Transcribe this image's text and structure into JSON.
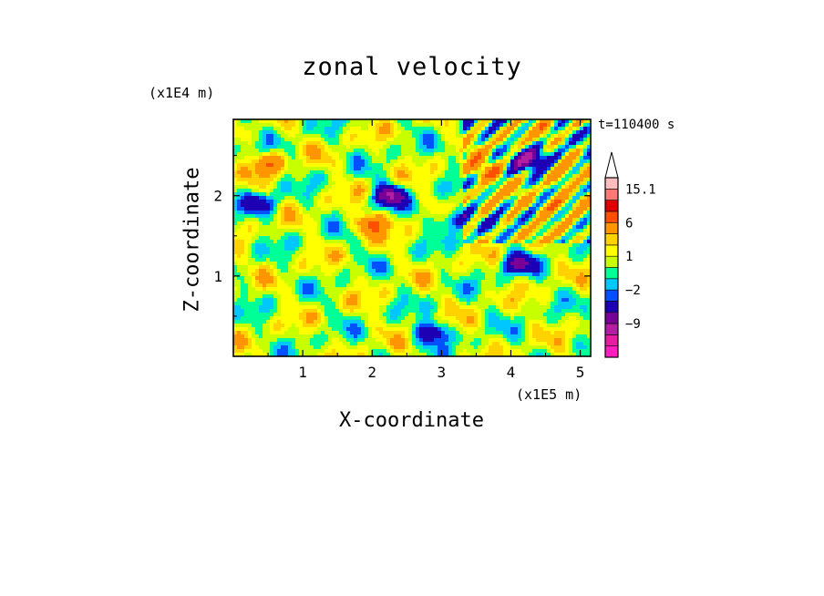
{
  "chart_data": {
    "type": "heatmap",
    "title": "zonal velocity",
    "xlabel": "X-coordinate",
    "ylabel": "Z-coordinate",
    "x_scale_label": "(x1E5 m)",
    "y_scale_label": "(x1E4 m)",
    "time_label": "t=110400 s",
    "xlim": [
      0,
      5.15
    ],
    "ylim": [
      0,
      2.95
    ],
    "x_ticks": [
      1,
      2,
      3,
      4,
      5
    ],
    "y_ticks": [
      1,
      2
    ],
    "colorbar": {
      "levels": [
        -15,
        -12,
        -9,
        -6,
        -3,
        -2,
        -1,
        0,
        1,
        2,
        3,
        6,
        9,
        12,
        15.1
      ],
      "tick_labels": [
        {
          "value": 15.1,
          "label": "15.1"
        },
        {
          "value": 6,
          "label": "6"
        },
        {
          "value": 1,
          "label": "1"
        },
        {
          "value": -2,
          "label": "−2"
        },
        {
          "value": -9,
          "label": "−9"
        }
      ],
      "colors": [
        "#ff1ebe",
        "#e61ea0",
        "#b41ea0",
        "#780096",
        "#1e00b4",
        "#0050ff",
        "#00c8ff",
        "#00ff96",
        "#c8ff00",
        "#ffff00",
        "#ffd200",
        "#ff9600",
        "#ff5000",
        "#e10000",
        "#ff7878",
        "#ffbebe",
        "#ffffff"
      ]
    },
    "field_features": [
      {
        "x": 2.25,
        "z": 2.0,
        "value": -9
      },
      {
        "x": 3.2,
        "z": 1.7,
        "value": -6
      },
      {
        "x": 4.3,
        "z": 2.45,
        "value": -9
      },
      {
        "x": 4.1,
        "z": 1.15,
        "value": -7
      },
      {
        "x": 2.0,
        "z": 1.65,
        "value": 6
      },
      {
        "x": 4.7,
        "z": 1.9,
        "value": 6
      },
      {
        "x": 3.6,
        "z": 2.3,
        "value": 5
      },
      {
        "x": 0.5,
        "z": 2.4,
        "value": 5
      },
      {
        "x": 0.4,
        "z": 1.9,
        "value": -5
      },
      {
        "x": 2.85,
        "z": 0.3,
        "value": -6
      }
    ]
  }
}
